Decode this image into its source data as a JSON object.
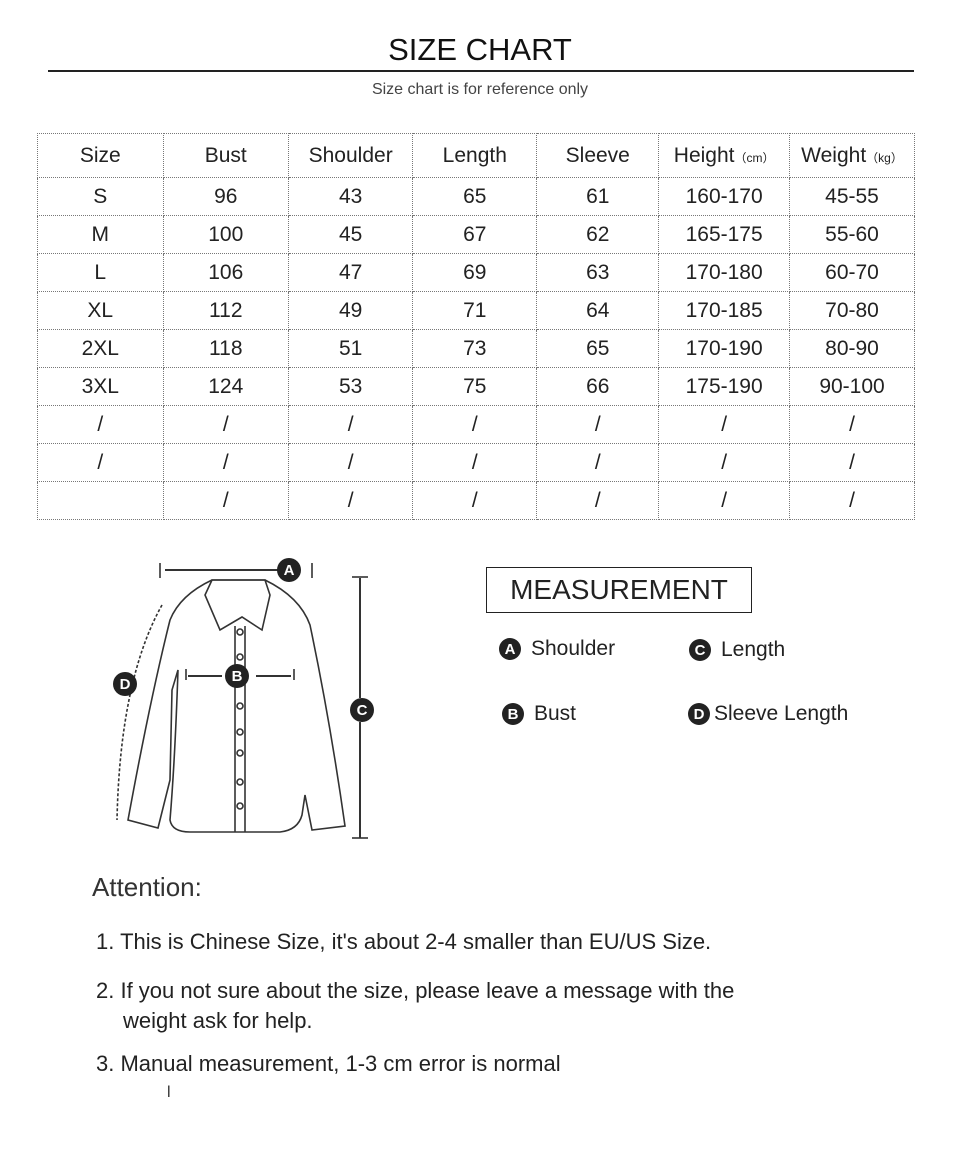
{
  "header": {
    "title": "SIZE CHART",
    "subtitle": "Size chart is for reference only"
  },
  "table": {
    "columns": [
      {
        "label": "Size",
        "unit": ""
      },
      {
        "label": "Bust",
        "unit": ""
      },
      {
        "label": "Shoulder",
        "unit": ""
      },
      {
        "label": "Length",
        "unit": ""
      },
      {
        "label": "Sleeve",
        "unit": ""
      },
      {
        "label": "Height",
        "unit": "（cm）"
      },
      {
        "label": "Weight",
        "unit": "（kg）"
      }
    ],
    "rows": [
      [
        "S",
        "96",
        "43",
        "65",
        "61",
        "160-170",
        "45-55"
      ],
      [
        "M",
        "100",
        "45",
        "67",
        "62",
        "165-175",
        "55-60"
      ],
      [
        "L",
        "106",
        "47",
        "69",
        "63",
        "170-180",
        "60-70"
      ],
      [
        "XL",
        "112",
        "49",
        "71",
        "64",
        "170-185",
        "70-80"
      ],
      [
        "2XL",
        "118",
        "51",
        "73",
        "65",
        "170-190",
        "80-90"
      ],
      [
        "3XL",
        "124",
        "53",
        "75",
        "66",
        "175-190",
        "90-100"
      ],
      [
        "/",
        "/",
        "/",
        "/",
        "/",
        "/",
        "/"
      ],
      [
        "/",
        "/",
        "/",
        "/",
        "/",
        "/",
        "/"
      ],
      [
        "",
        "/",
        "/",
        "/",
        "/",
        "/",
        "/"
      ]
    ]
  },
  "diagram": {
    "markers": [
      "A",
      "B",
      "C",
      "D"
    ]
  },
  "measurement": {
    "title": "MEASUREMENT",
    "items": [
      {
        "badge": "A",
        "label": "Shoulder"
      },
      {
        "badge": "C",
        "label": "Length"
      },
      {
        "badge": "B",
        "label": "Bust"
      },
      {
        "badge": "D",
        "label": "Sleeve Length"
      }
    ]
  },
  "attention": {
    "title": "Attention:",
    "notes": [
      "1. This is Chinese Size, it's about 2-4 smaller than EU/US Size.",
      "2. If you not sure about the size, please leave a message with the",
      "weight ask for help.",
      "3. Manual measurement, 1-3 cm error is normal"
    ],
    "stray_mark": "l"
  }
}
